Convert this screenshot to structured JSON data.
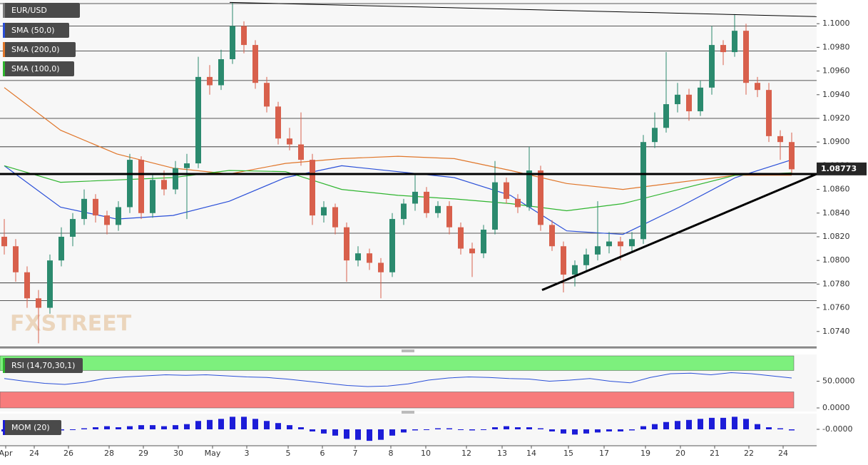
{
  "chart_data": {
    "type": "candlestick",
    "symbol": "EUR/USD",
    "up_color": "#2b8a6e",
    "down_color": "#d8604c",
    "candles": [
      [
        1.082,
        1.0835,
        1.0805,
        1.0812
      ],
      [
        1.0812,
        1.0818,
        1.0782,
        1.079
      ],
      [
        1.079,
        1.0795,
        1.076,
        1.0768
      ],
      [
        1.0768,
        1.0775,
        1.073,
        1.076
      ],
      [
        1.076,
        1.0805,
        1.0755,
        1.08
      ],
      [
        1.08,
        1.0828,
        1.0795,
        1.082
      ],
      [
        1.082,
        1.084,
        1.0812,
        1.0835
      ],
      [
        1.0835,
        1.086,
        1.083,
        1.0852
      ],
      [
        1.0852,
        1.0856,
        1.0832,
        1.0838
      ],
      [
        1.0838,
        1.0842,
        1.0822,
        1.083
      ],
      [
        1.083,
        1.085,
        1.0825,
        1.0845
      ],
      [
        1.0845,
        1.089,
        1.084,
        1.0885
      ],
      [
        1.0885,
        1.0888,
        1.0835,
        1.084
      ],
      [
        1.084,
        1.0872,
        1.0836,
        1.0868
      ],
      [
        1.0868,
        1.0876,
        1.0855,
        1.086
      ],
      [
        1.086,
        1.0884,
        1.0856,
        1.0878
      ],
      [
        1.0878,
        1.089,
        1.0835,
        1.0882
      ],
      [
        1.0882,
        1.0972,
        1.0878,
        1.0955
      ],
      [
        1.0955,
        1.0965,
        1.094,
        1.0948
      ],
      [
        1.0948,
        1.0978,
        1.0944,
        1.097
      ],
      [
        1.097,
        1.1018,
        1.0966,
        1.0998
      ],
      [
        1.0998,
        1.1002,
        1.0975,
        1.0982
      ],
      [
        1.0982,
        1.0986,
        1.0945,
        1.095
      ],
      [
        1.095,
        1.0955,
        1.0925,
        1.093
      ],
      [
        1.093,
        1.0934,
        1.0898,
        1.0903
      ],
      [
        1.0903,
        1.0912,
        1.0893,
        1.0898
      ],
      [
        1.0898,
        1.0925,
        1.088,
        1.0885
      ],
      [
        1.0885,
        1.089,
        1.083,
        1.0838
      ],
      [
        1.0838,
        1.085,
        1.0832,
        1.0845
      ],
      [
        1.0845,
        1.0848,
        1.0822,
        1.0828
      ],
      [
        1.0828,
        1.0832,
        1.0782,
        1.08
      ],
      [
        1.08,
        1.0812,
        1.0795,
        1.0806
      ],
      [
        1.0806,
        1.081,
        1.0792,
        1.0798
      ],
      [
        1.0798,
        1.0802,
        1.0768,
        1.079
      ],
      [
        1.079,
        1.084,
        1.0786,
        1.0835
      ],
      [
        1.0835,
        1.0852,
        1.083,
        1.0848
      ],
      [
        1.0848,
        1.0872,
        1.0842,
        1.0858
      ],
      [
        1.0858,
        1.0862,
        1.0836,
        1.084
      ],
      [
        1.084,
        1.085,
        1.0836,
        1.0846
      ],
      [
        1.0846,
        1.085,
        1.0822,
        1.0828
      ],
      [
        1.0828,
        1.0832,
        1.0805,
        1.081
      ],
      [
        1.081,
        1.0815,
        1.0786,
        1.0806
      ],
      [
        1.0806,
        1.083,
        1.0802,
        1.0826
      ],
      [
        1.0826,
        1.0884,
        1.0822,
        1.0866
      ],
      [
        1.0866,
        1.087,
        1.0848,
        1.0852
      ],
      [
        1.0852,
        1.0856,
        1.084,
        1.0845
      ],
      [
        1.0845,
        1.0896,
        1.0842,
        1.0876
      ],
      [
        1.0876,
        1.088,
        1.0825,
        1.083
      ],
      [
        1.083,
        1.0834,
        1.0808,
        1.0812
      ],
      [
        1.0812,
        1.0816,
        1.0773,
        1.0788
      ],
      [
        1.0788,
        1.08,
        1.0778,
        1.0796
      ],
      [
        1.0796,
        1.081,
        1.079,
        1.0805
      ],
      [
        1.0805,
        1.085,
        1.08,
        1.0812
      ],
      [
        1.0812,
        1.0824,
        1.0806,
        1.0816
      ],
      [
        1.0816,
        1.082,
        1.08,
        1.0812
      ],
      [
        1.0812,
        1.0824,
        1.0808,
        1.0818
      ],
      [
        1.0818,
        1.0906,
        1.0814,
        1.09
      ],
      [
        1.09,
        1.0925,
        1.0895,
        1.0912
      ],
      [
        1.0912,
        1.0976,
        1.0908,
        1.0932
      ],
      [
        1.0932,
        1.095,
        1.0925,
        1.094
      ],
      [
        1.094,
        1.0945,
        1.0918,
        1.0926
      ],
      [
        1.0926,
        1.0952,
        1.0922,
        1.0946
      ],
      [
        1.0946,
        1.0998,
        1.094,
        1.0982
      ],
      [
        1.0982,
        1.0986,
        1.0965,
        1.0976
      ],
      [
        1.0976,
        1.1008,
        1.0972,
        1.0994
      ],
      [
        1.0994,
        1.1,
        1.094,
        1.095
      ],
      [
        1.095,
        1.0955,
        1.0938,
        1.0944
      ],
      [
        1.0944,
        1.095,
        1.09,
        1.0905
      ],
      [
        1.0905,
        1.091,
        1.0885,
        1.09
      ],
      [
        1.09,
        1.0908,
        1.0872,
        1.0877
      ]
    ],
    "ylim": [
      1.0726,
      1.102
    ],
    "yticks": [
      {
        "value": 1.074,
        "label": "1.0740"
      },
      {
        "value": 1.076,
        "label": "1.0760"
      },
      {
        "value": 1.078,
        "label": "1.0780"
      },
      {
        "value": 1.08,
        "label": "1.0800"
      },
      {
        "value": 1.082,
        "label": "1.0820"
      },
      {
        "value": 1.084,
        "label": "1.0840"
      },
      {
        "value": 1.086,
        "label": "1.0860"
      },
      {
        "value": 1.088,
        "label": "1.0880"
      },
      {
        "value": 1.09,
        "label": "1.0900"
      },
      {
        "value": 1.092,
        "label": "1.0920"
      },
      {
        "value": 1.094,
        "label": "1.0940"
      },
      {
        "value": 1.096,
        "label": "1.0960"
      },
      {
        "value": 1.098,
        "label": "1.0980"
      },
      {
        "value": 1.1,
        "label": "1.1000"
      }
    ],
    "last_price": 1.08773,
    "levels": [
      1.1017,
      1.0998,
      1.0977,
      1.0952,
      1.092,
      1.0896,
      1.0823,
      1.0781,
      1.0766,
      1.0727
    ],
    "key_level": 1.0873,
    "trendlines": [
      [
        1.1018,
        1.1006
      ],
      [
        1.0775,
        1.0873
      ]
    ],
    "sma": [
      {
        "name": "SMA (50,0)",
        "color": "#2a4fd8",
        "values": [
          1.088,
          1.0845,
          1.0835,
          1.0838,
          1.085,
          1.087,
          1.088,
          1.0875,
          1.087,
          1.0855,
          1.0825,
          1.0822,
          1.0845,
          1.087,
          1.0885
        ]
      },
      {
        "name": "SMA (200,0)",
        "color": "#e0762a",
        "values": [
          1.0946,
          1.091,
          1.089,
          1.0878,
          1.0873,
          1.0882,
          1.0886,
          1.0888,
          1.0886,
          1.0876,
          1.0865,
          1.086,
          1.0866,
          1.0872,
          1.0872
        ]
      },
      {
        "name": "SMA (100,0)",
        "color": "#2fb52f",
        "values": [
          1.088,
          1.0866,
          1.0868,
          1.087,
          1.0876,
          1.0875,
          1.086,
          1.0855,
          1.0852,
          1.0848,
          1.0842,
          1.0848,
          1.086,
          1.0872,
          1.0874
        ]
      }
    ],
    "x_labels": [
      "Apr",
      "24",
      "26",
      "28",
      "29",
      "30",
      "May",
      "3",
      "5",
      "6",
      "7",
      "8",
      "10",
      "12",
      "13",
      "14",
      "15",
      "17",
      "19",
      "20",
      "21",
      "22",
      "24"
    ],
    "watermark": "FXSTREET",
    "rsi": {
      "name": "RSI (14,70,30,1)",
      "overbought": 70,
      "oversold": 30,
      "color": "#2a4fd8",
      "ylim": [
        0,
        100
      ],
      "yticks": [
        {
          "value": 50,
          "label": "50.0000"
        },
        {
          "value": 0,
          "label": "0.0000"
        }
      ],
      "values": [
        55,
        50,
        46,
        44,
        48,
        55,
        58,
        60,
        62,
        61,
        62,
        60,
        58,
        57,
        54,
        50,
        46,
        42,
        40,
        41,
        45,
        52,
        56,
        58,
        57,
        55,
        54,
        50,
        52,
        55,
        50,
        47,
        57,
        64,
        65,
        62,
        66,
        64,
        60,
        56
      ]
    },
    "mom": {
      "name": "MOM (20)",
      "color": "#1c1cd8",
      "ylim": [
        -0.015,
        0.015
      ],
      "yticks": [
        {
          "value": 0,
          "label": "-0.0000"
        }
      ],
      "values": [
        -0.002,
        -0.003,
        -0.004,
        -0.005,
        -0.003,
        -0.001,
        0.0,
        0.001,
        0.002,
        0.003,
        0.002,
        0.003,
        0.004,
        0.004,
        0.003,
        0.004,
        0.005,
        0.008,
        0.009,
        0.01,
        0.012,
        0.012,
        0.01,
        0.008,
        0.006,
        0.004,
        0.002,
        -0.002,
        -0.004,
        -0.006,
        -0.009,
        -0.01,
        -0.011,
        -0.01,
        -0.006,
        -0.003,
        -0.001,
        0.0,
        0.001,
        0.001,
        0.0,
        -0.001,
        0.0,
        0.002,
        0.003,
        0.002,
        0.002,
        0.001,
        -0.002,
        -0.004,
        -0.005,
        -0.004,
        -0.003,
        -0.002,
        -0.002,
        -0.001,
        0.003,
        0.005,
        0.007,
        0.008,
        0.009,
        0.01,
        0.011,
        0.011,
        0.012,
        0.01,
        0.005,
        0.002,
        0.001,
        -0.001
      ]
    }
  }
}
